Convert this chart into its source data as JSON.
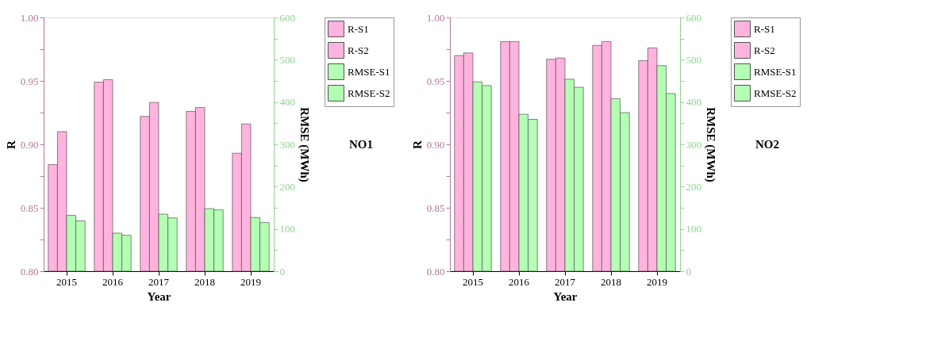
{
  "chart_data": [
    {
      "type": "bar",
      "categories": [
        "2015",
        "2016",
        "2017",
        "2018",
        "2019"
      ],
      "xlabel": "Year",
      "ylabel": "R",
      "y2label": "RMSE (MWh)",
      "annotations": [
        "NO1"
      ],
      "legend": "right",
      "grid": false,
      "ylim": [
        0.8,
        1.0
      ],
      "yticks": [
        {
          "value": 0.8,
          "label": "0.80"
        },
        {
          "value": 0.825,
          "label": null
        },
        {
          "value": 0.85,
          "label": "0.85"
        },
        {
          "value": 0.875,
          "label": null
        },
        {
          "value": 0.9,
          "label": "0.90"
        },
        {
          "value": 0.925,
          "label": null
        },
        {
          "value": 0.95,
          "label": "0.95"
        },
        {
          "value": 0.975,
          "label": null
        },
        {
          "value": 1.0,
          "label": "1.00"
        }
      ],
      "y2lim": [
        0,
        600
      ],
      "y2ticks": [
        0,
        {
          "value": 50,
          "label": null
        },
        100,
        {
          "value": 150,
          "label": null
        },
        200,
        {
          "value": 250,
          "label": null
        },
        300,
        {
          "value": 350,
          "label": null
        },
        400,
        {
          "value": 450,
          "label": null
        },
        500,
        {
          "value": 550,
          "label": null
        },
        600
      ],
      "series": [
        {
          "name": "R-S1",
          "color": "#ffb3de",
          "values": [
            0.884,
            0.949,
            0.922,
            0.926,
            0.893
          ]
        },
        {
          "name": "R-S2",
          "color": "#ffb3de",
          "values": [
            0.91,
            0.951,
            0.933,
            0.929,
            0.916
          ]
        },
        {
          "name": "RMSE-S1",
          "color": "#b3ffb3",
          "axis": "y2",
          "values": [
            132,
            90,
            135,
            148,
            127
          ]
        },
        {
          "name": "RMSE-S2",
          "color": "#b3ffb3",
          "axis": "y2",
          "values": [
            119,
            85,
            126,
            145,
            115
          ]
        }
      ]
    },
    {
      "type": "bar",
      "categories": [
        "2015",
        "2016",
        "2017",
        "2018",
        "2019"
      ],
      "xlabel": "Year",
      "ylabel": "R",
      "y2label": "RMSE (MWh)",
      "annotations": [
        "NO2"
      ],
      "legend": "right",
      "grid": false,
      "ylim": [
        0.8,
        1.0
      ],
      "yticks": [
        {
          "value": 0.8,
          "label": "0.80"
        },
        {
          "value": 0.825,
          "label": null
        },
        {
          "value": 0.85,
          "label": "0.85"
        },
        {
          "value": 0.875,
          "label": null
        },
        {
          "value": 0.9,
          "label": "0.90"
        },
        {
          "value": 0.925,
          "label": null
        },
        {
          "value": 0.95,
          "label": "0.95"
        },
        {
          "value": 0.975,
          "label": null
        },
        {
          "value": 1.0,
          "label": "1.00"
        }
      ],
      "y2lim": [
        0,
        600
      ],
      "y2ticks": [
        0,
        {
          "value": 50,
          "label": null
        },
        100,
        {
          "value": 150,
          "label": null
        },
        200,
        {
          "value": 250,
          "label": null
        },
        300,
        {
          "value": 350,
          "label": null
        },
        400,
        {
          "value": 450,
          "label": null
        },
        500,
        {
          "value": 550,
          "label": null
        },
        600
      ],
      "series": [
        {
          "name": "R-S1",
          "color": "#ffb3de",
          "values": [
            0.97,
            0.981,
            0.967,
            0.978,
            0.966
          ]
        },
        {
          "name": "R-S2",
          "color": "#ffb3de",
          "values": [
            0.972,
            0.981,
            0.968,
            0.981,
            0.976
          ]
        },
        {
          "name": "RMSE-S1",
          "color": "#b3ffb3",
          "axis": "y2",
          "values": [
            448,
            371,
            454,
            408,
            486
          ]
        },
        {
          "name": "RMSE-S2",
          "color": "#b3ffb3",
          "axis": "y2",
          "values": [
            439,
            359,
            435,
            375,
            420
          ]
        }
      ]
    }
  ]
}
